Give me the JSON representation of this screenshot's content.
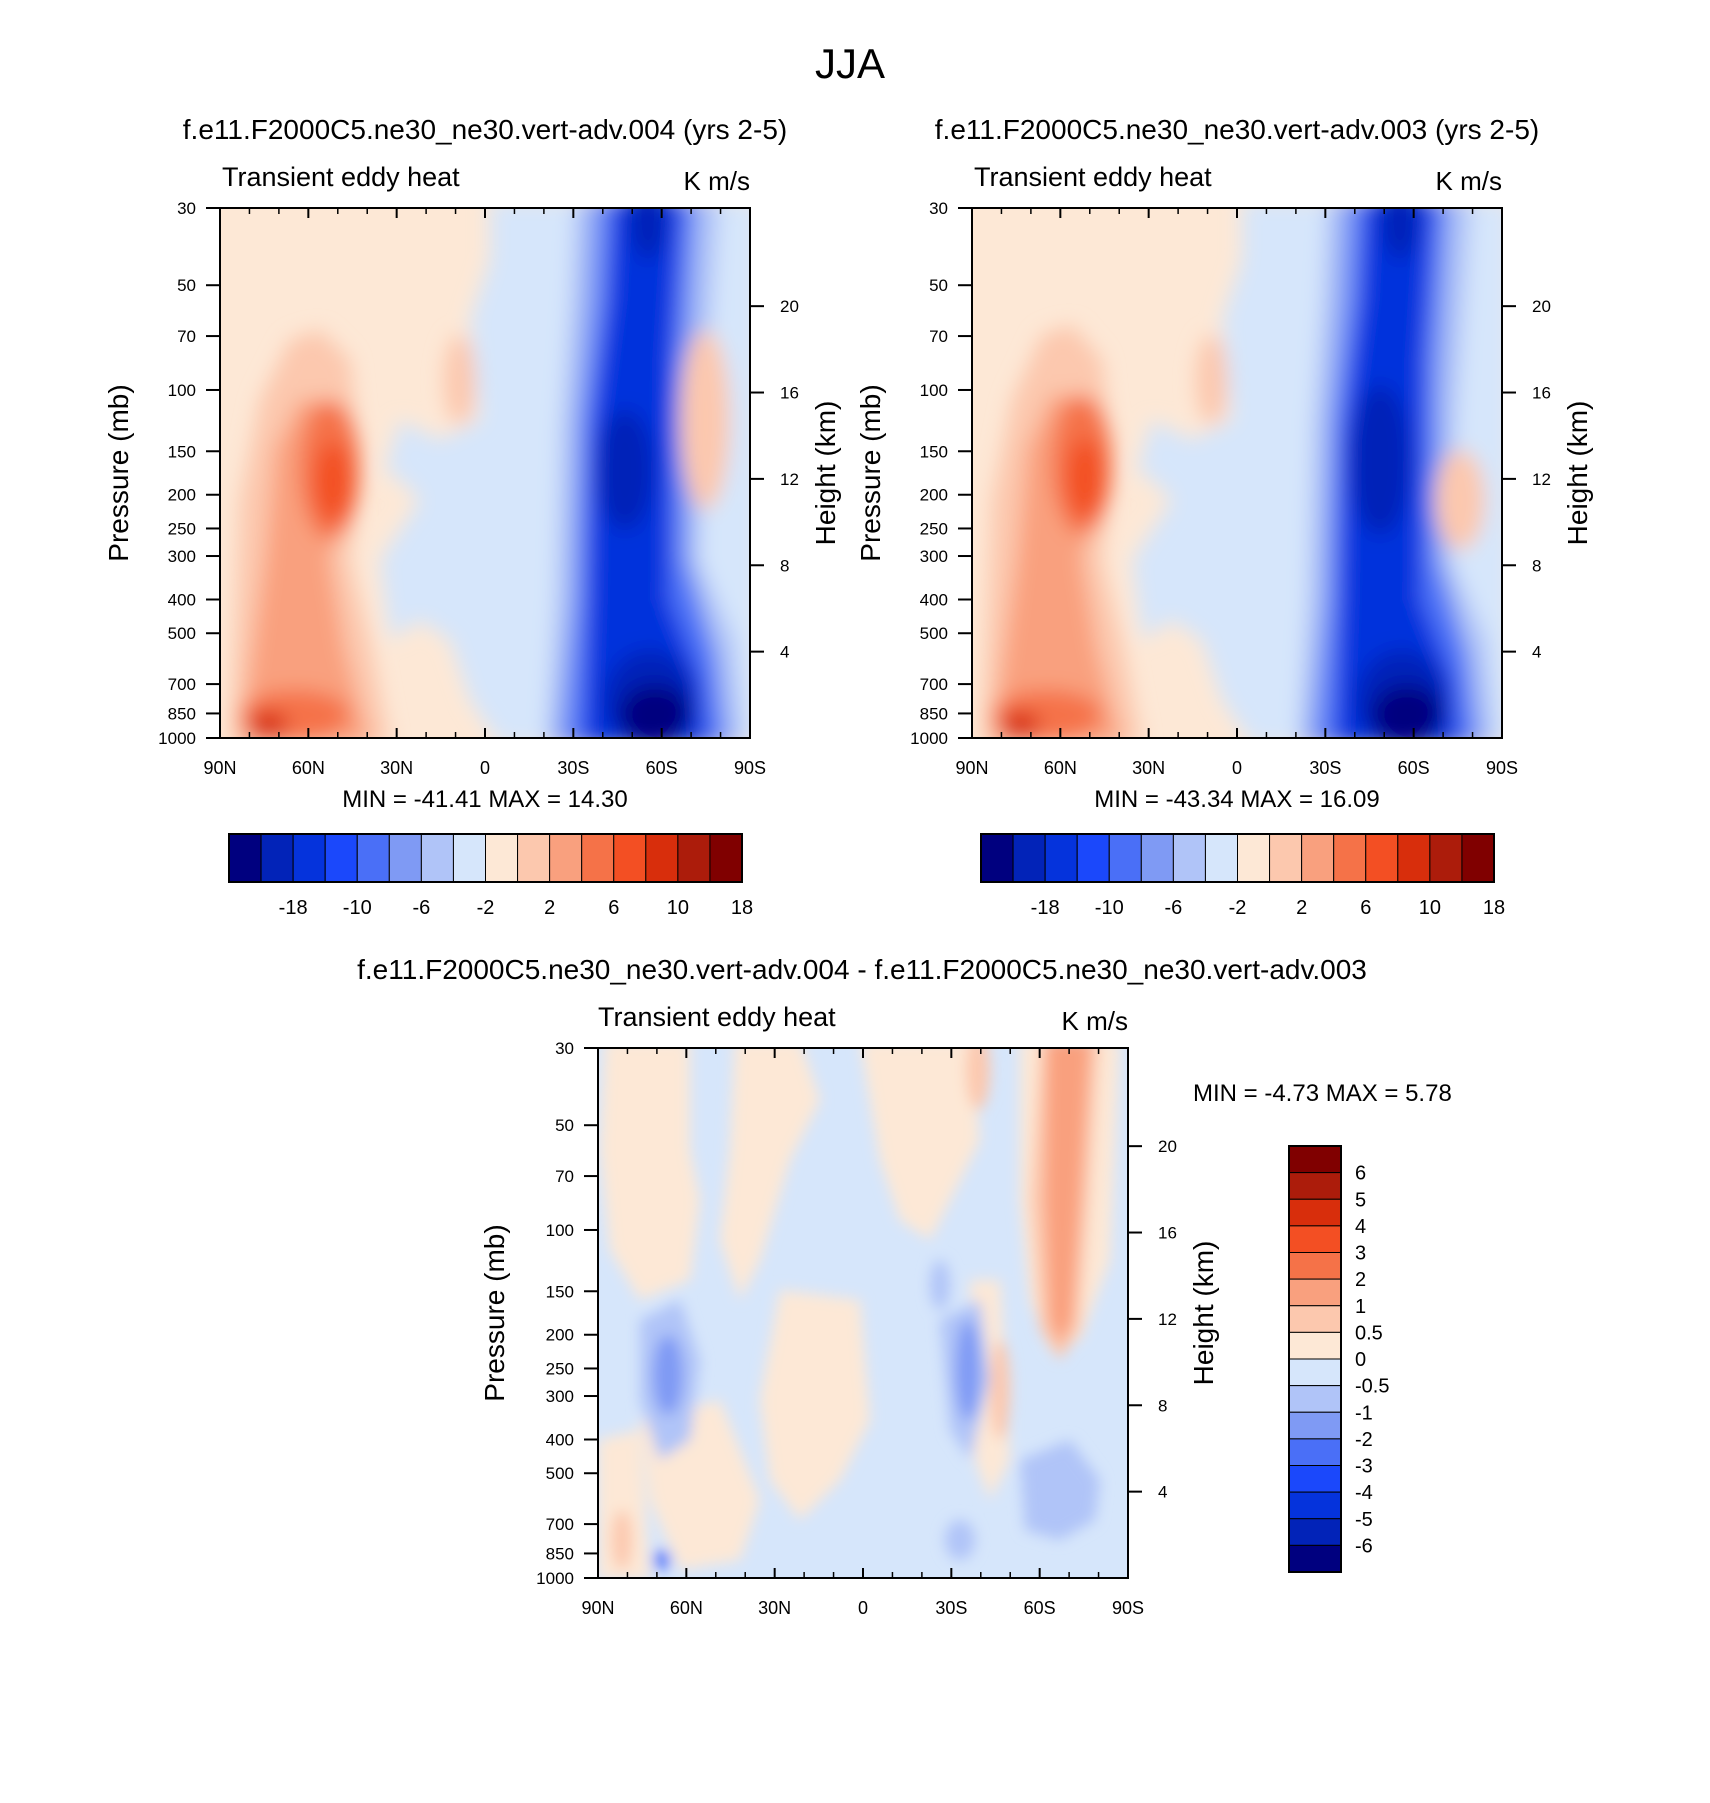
{
  "figure": {
    "main_title": "JJA"
  },
  "palettes": {
    "main": [
      "#00007f",
      "#0223b8",
      "#0533dc",
      "#1b48fb",
      "#4a6ff7",
      "#7f9af4",
      "#b0c4f8",
      "#d6e6fb",
      "#fde8d6",
      "#fcc8ae",
      "#f9a07e",
      "#f57248",
      "#f34f23",
      "#d82e0c",
      "#ac1c0b",
      "#800000"
    ],
    "diff": [
      "#00007f",
      "#0223b8",
      "#0533dc",
      "#1b48fb",
      "#4a6ff7",
      "#7f9af4",
      "#b0c4f8",
      "#d6e6fb",
      "#fde8d6",
      "#fcc8ae",
      "#f9a07e",
      "#f57248",
      "#f34f23",
      "#d82e0c",
      "#ac1c0b",
      "#800000"
    ]
  },
  "chart_data": [
    {
      "type": "heatmap",
      "title": "f.e11.F2000C5.ne30_ne30.vert-adv.004 (yrs 2-5)",
      "left_label": "Transient eddy heat",
      "right_label": "K m/s",
      "ylabel": "Pressure (mb)",
      "ylabel_right": "Height (km)",
      "x_ticks": [
        "90N",
        "60N",
        "30N",
        "0",
        "30S",
        "60S",
        "90S"
      ],
      "y_ticks": [
        "30",
        "50",
        "70",
        "100",
        "150",
        "200",
        "250",
        "300",
        "400",
        "500",
        "700",
        "850",
        "1000"
      ],
      "y_ticks_right": [
        "4",
        "8",
        "12",
        "16",
        "20"
      ],
      "stats": "MIN = -41.41   MAX =  14.30",
      "min": -41.41,
      "max": 14.3,
      "colorbar_labels": [
        "-18",
        "-10",
        "-6",
        "-2",
        "2",
        "6",
        "10",
        "18"
      ],
      "colorbar_levels": [
        -18,
        -14,
        -10,
        -8,
        -6,
        -4,
        -2,
        0,
        2,
        4,
        6,
        8,
        10,
        14,
        18
      ],
      "xlim": [
        90,
        -90
      ],
      "ylim": [
        1000,
        30
      ]
    },
    {
      "type": "heatmap",
      "title": "f.e11.F2000C5.ne30_ne30.vert-adv.003 (yrs 2-5)",
      "left_label": "Transient eddy heat",
      "right_label": "K m/s",
      "ylabel": "Pressure (mb)",
      "ylabel_right": "Height (km)",
      "x_ticks": [
        "90N",
        "60N",
        "30N",
        "0",
        "30S",
        "60S",
        "90S"
      ],
      "y_ticks": [
        "30",
        "50",
        "70",
        "100",
        "150",
        "200",
        "250",
        "300",
        "400",
        "500",
        "700",
        "850",
        "1000"
      ],
      "y_ticks_right": [
        "4",
        "8",
        "12",
        "16",
        "20"
      ],
      "stats": "MIN = -43.34   MAX =  16.09",
      "min": -43.34,
      "max": 16.09,
      "colorbar_labels": [
        "-18",
        "-10",
        "-6",
        "-2",
        "2",
        "6",
        "10",
        "18"
      ],
      "colorbar_levels": [
        -18,
        -14,
        -10,
        -8,
        -6,
        -4,
        -2,
        0,
        2,
        4,
        6,
        8,
        10,
        14,
        18
      ],
      "xlim": [
        90,
        -90
      ],
      "ylim": [
        1000,
        30
      ]
    },
    {
      "type": "heatmap",
      "title": "f.e11.F2000C5.ne30_ne30.vert-adv.004 - f.e11.F2000C5.ne30_ne30.vert-adv.003",
      "left_label": "Transient eddy heat",
      "right_label": "K m/s",
      "ylabel": "Pressure (mb)",
      "ylabel_right": "Height (km)",
      "x_ticks": [
        "90N",
        "60N",
        "30N",
        "0",
        "30S",
        "60S",
        "90S"
      ],
      "y_ticks": [
        "30",
        "50",
        "70",
        "100",
        "150",
        "200",
        "250",
        "300",
        "400",
        "500",
        "700",
        "850",
        "1000"
      ],
      "y_ticks_right": [
        "4",
        "8",
        "12",
        "16",
        "20"
      ],
      "stats": "MIN =  -4.73   MAX =   5.78",
      "min": -4.73,
      "max": 5.78,
      "colorbar_labels": [
        "6",
        "5",
        "4",
        "3",
        "2",
        "1",
        "0.5",
        "0",
        "-0.5",
        "-1",
        "-2",
        "-3",
        "-4",
        "-5",
        "-6"
      ],
      "xlim": [
        90,
        -90
      ],
      "ylim": [
        1000,
        30
      ]
    }
  ]
}
